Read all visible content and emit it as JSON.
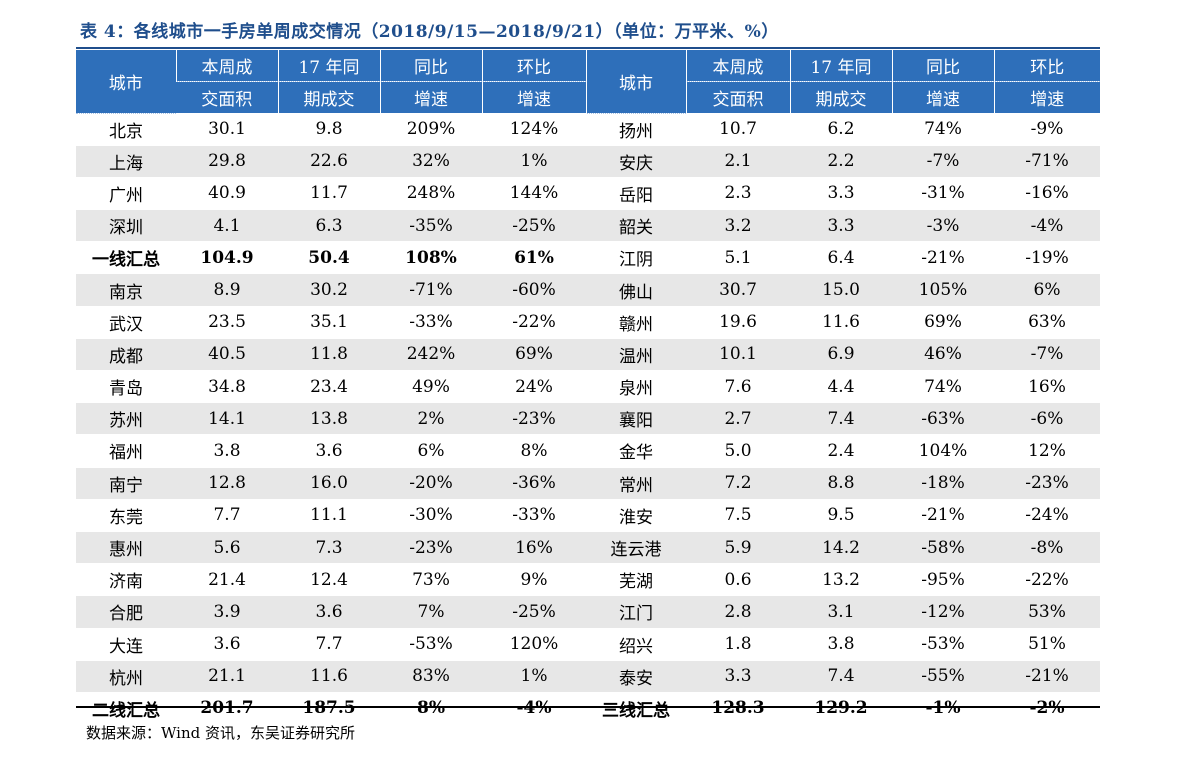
{
  "title": "表 4：各线城市一手房单周成交情况（2018/9/15—2018/9/21）（单位：万平米、%）",
  "header": {
    "city": "城市",
    "area_line1": "本周成",
    "area_line2": "交面积",
    "ly_line1": "17 年同",
    "ly_line2": "期成交",
    "yoy_line1": "同比",
    "yoy_line2": "增速",
    "mom_line1": "环比",
    "mom_line2": "增速"
  },
  "rows": [
    {
      "l": [
        "北京",
        "30.1",
        "9.8",
        "209%",
        "124%"
      ],
      "r": [
        "扬州",
        "10.7",
        "6.2",
        "74%",
        "-9%"
      ]
    },
    {
      "l": [
        "上海",
        "29.8",
        "22.6",
        "32%",
        "1%"
      ],
      "r": [
        "安庆",
        "2.1",
        "2.2",
        "-7%",
        "-71%"
      ]
    },
    {
      "l": [
        "广州",
        "40.9",
        "11.7",
        "248%",
        "144%"
      ],
      "r": [
        "岳阳",
        "2.3",
        "3.3",
        "-31%",
        "-16%"
      ]
    },
    {
      "l": [
        "深圳",
        "4.1",
        "6.3",
        "-35%",
        "-25%"
      ],
      "r": [
        "韶关",
        "3.2",
        "3.3",
        "-3%",
        "-4%"
      ]
    },
    {
      "l": [
        "一线汇总",
        "104.9",
        "50.4",
        "108%",
        "61%"
      ],
      "r": [
        "江阴",
        "5.1",
        "6.4",
        "-21%",
        "-19%"
      ],
      "left_bold": true
    },
    {
      "l": [
        "南京",
        "8.9",
        "30.2",
        "-71%",
        "-60%"
      ],
      "r": [
        "佛山",
        "30.7",
        "15.0",
        "105%",
        "6%"
      ]
    },
    {
      "l": [
        "武汉",
        "23.5",
        "35.1",
        "-33%",
        "-22%"
      ],
      "r": [
        "赣州",
        "19.6",
        "11.6",
        "69%",
        "63%"
      ]
    },
    {
      "l": [
        "成都",
        "40.5",
        "11.8",
        "242%",
        "69%"
      ],
      "r": [
        "温州",
        "10.1",
        "6.9",
        "46%",
        "-7%"
      ]
    },
    {
      "l": [
        "青岛",
        "34.8",
        "23.4",
        "49%",
        "24%"
      ],
      "r": [
        "泉州",
        "7.6",
        "4.4",
        "74%",
        "16%"
      ]
    },
    {
      "l": [
        "苏州",
        "14.1",
        "13.8",
        "2%",
        "-23%"
      ],
      "r": [
        "襄阳",
        "2.7",
        "7.4",
        "-63%",
        "-6%"
      ]
    },
    {
      "l": [
        "福州",
        "3.8",
        "3.6",
        "6%",
        "8%"
      ],
      "r": [
        "金华",
        "5.0",
        "2.4",
        "104%",
        "12%"
      ]
    },
    {
      "l": [
        "南宁",
        "12.8",
        "16.0",
        "-20%",
        "-36%"
      ],
      "r": [
        "常州",
        "7.2",
        "8.8",
        "-18%",
        "-23%"
      ]
    },
    {
      "l": [
        "东莞",
        "7.7",
        "11.1",
        "-30%",
        "-33%"
      ],
      "r": [
        "淮安",
        "7.5",
        "9.5",
        "-21%",
        "-24%"
      ]
    },
    {
      "l": [
        "惠州",
        "5.6",
        "7.3",
        "-23%",
        "16%"
      ],
      "r": [
        "连云港",
        "5.9",
        "14.2",
        "-58%",
        "-8%"
      ]
    },
    {
      "l": [
        "济南",
        "21.4",
        "12.4",
        "73%",
        "9%"
      ],
      "r": [
        "芜湖",
        "0.6",
        "13.2",
        "-95%",
        "-22%"
      ]
    },
    {
      "l": [
        "合肥",
        "3.9",
        "3.6",
        "7%",
        "-25%"
      ],
      "r": [
        "江门",
        "2.8",
        "3.1",
        "-12%",
        "53%"
      ]
    },
    {
      "l": [
        "大连",
        "3.6",
        "7.7",
        "-53%",
        "120%"
      ],
      "r": [
        "绍兴",
        "1.8",
        "3.8",
        "-53%",
        "51%"
      ]
    },
    {
      "l": [
        "杭州",
        "21.1",
        "11.6",
        "83%",
        "1%"
      ],
      "r": [
        "泰安",
        "3.3",
        "7.4",
        "-55%",
        "-21%"
      ]
    },
    {
      "l": [
        "二线汇总",
        "201.7",
        "187.5",
        "8%",
        "-4%"
      ],
      "r": [
        "三线汇总",
        "128.3",
        "129.2",
        "-1%",
        "-2%"
      ],
      "left_bold": true,
      "right_bold": true
    }
  ],
  "source": "数据来源：Wind 资讯，东吴证券研究所"
}
